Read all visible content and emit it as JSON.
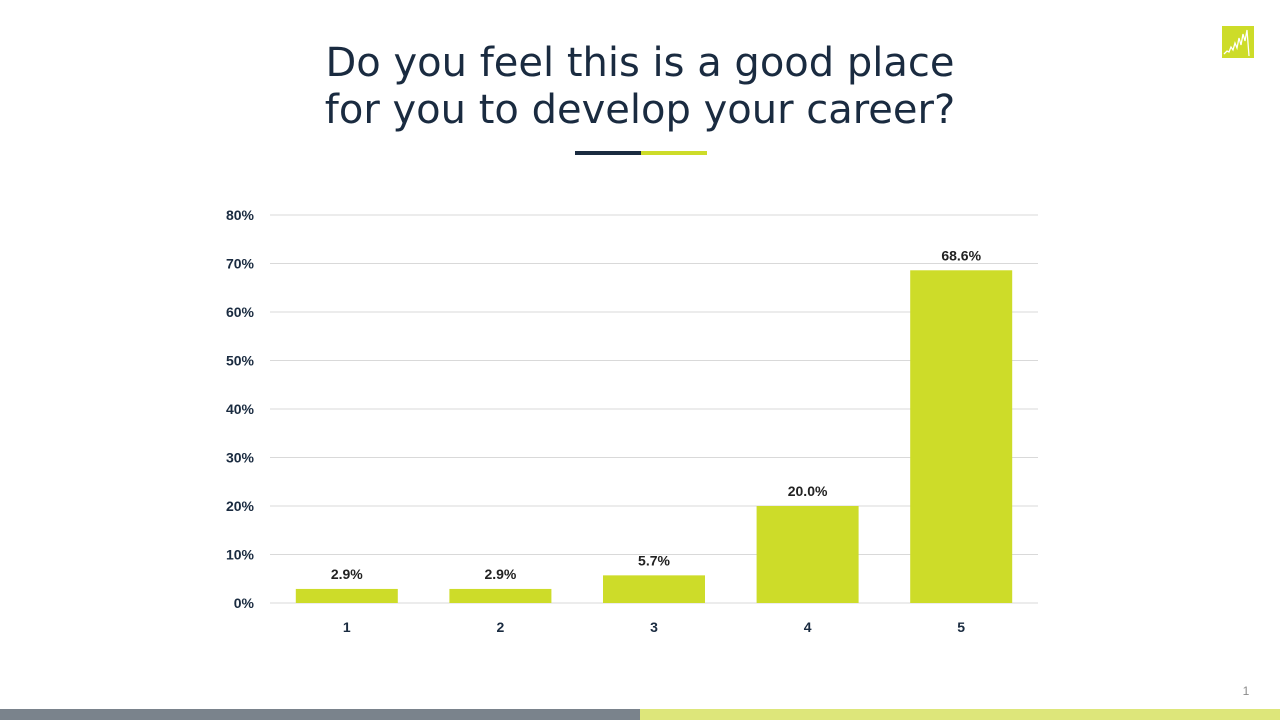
{
  "slide": {
    "title_lines": [
      "Do you feel this is a good place",
      "for you to develop your career?"
    ],
    "page_number": "1"
  },
  "logo": {
    "icon": "chart-line-logo-icon"
  },
  "colors": {
    "title": "#1a2b40",
    "underline_dark": "#1a2b40",
    "accent": "#cddc29",
    "axis_text": "#1a2b40",
    "value_label": "#222222",
    "gridline": "#d9d9d9",
    "footer_left": "#7a838c",
    "footer_right": "#dde67a"
  },
  "chart_data": {
    "type": "bar",
    "title": "",
    "xlabel": "",
    "ylabel": "",
    "categories": [
      "1",
      "2",
      "3",
      "4",
      "5"
    ],
    "values": [
      2.9,
      2.9,
      5.7,
      20.0,
      68.6
    ],
    "value_labels": [
      "2.9%",
      "2.9%",
      "5.7%",
      "20.0%",
      "68.6%"
    ],
    "ylim": [
      0,
      80
    ],
    "y_ticks": [
      "0%",
      "10%",
      "20%",
      "30%",
      "40%",
      "50%",
      "60%",
      "70%",
      "80%"
    ],
    "grid": true,
    "legend": "none"
  }
}
